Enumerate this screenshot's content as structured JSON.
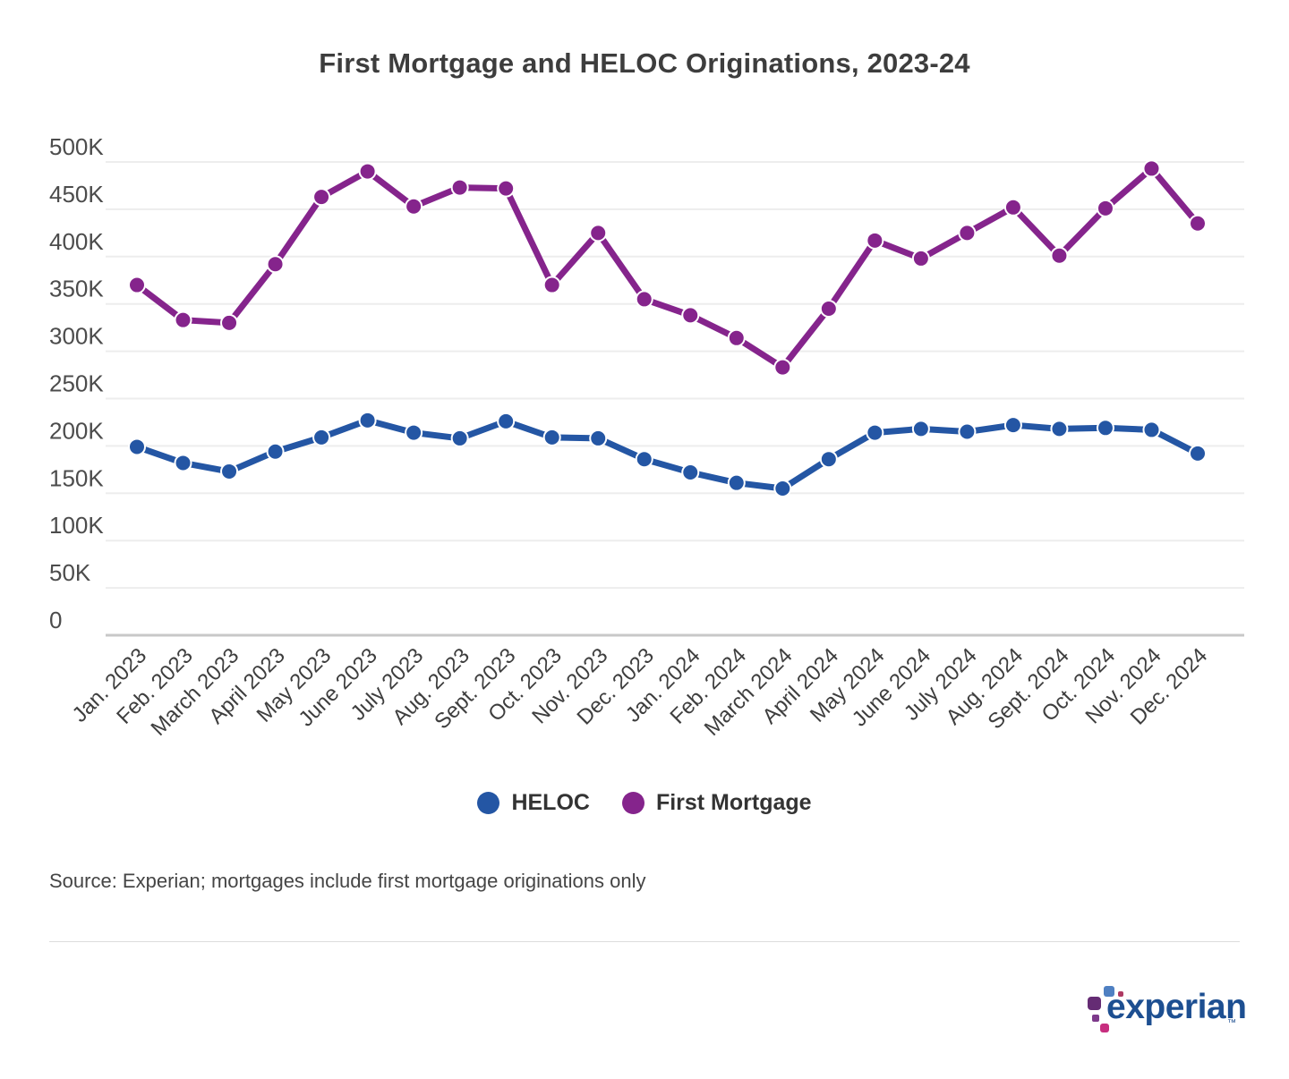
{
  "title": "First Mortgage and HELOC Originations, 2023-24",
  "source_note": "Source: Experian; mortgages include first mortgage originations only",
  "legend": [
    {
      "label": "HELOC",
      "color": "#2456a4"
    },
    {
      "label": "First Mortgage",
      "color": "#85248c"
    }
  ],
  "logo": {
    "wordmark": "experian",
    "tm": "™"
  },
  "chart_data": {
    "type": "line",
    "title": "First Mortgage and HELOC Originations, 2023-24",
    "xlabel": "",
    "ylabel": "",
    "unit": "thousands (K) of originations",
    "ylim": [
      0,
      500
    ],
    "y_ticks": [
      "0",
      "50K",
      "100K",
      "150K",
      "200K",
      "250K",
      "300K",
      "350K",
      "400K",
      "450K",
      "500K"
    ],
    "grid": true,
    "legend_position": "bottom",
    "categories": [
      "Jan. 2023",
      "Feb. 2023",
      "March 2023",
      "April 2023",
      "May 2023",
      "June 2023",
      "July 2023",
      "Aug. 2023",
      "Sept. 2023",
      "Oct. 2023",
      "Nov. 2023",
      "Dec. 2023",
      "Jan. 2024",
      "Feb. 2024",
      "March 2024",
      "April 2024",
      "May 2024",
      "June 2024",
      "July 2024",
      "Aug. 2024",
      "Sept. 2024",
      "Oct. 2024",
      "Nov. 2024",
      "Dec. 2024"
    ],
    "series": [
      {
        "name": "HELOC",
        "color": "#2456a4",
        "values": [
          199,
          182,
          173,
          194,
          209,
          227,
          214,
          208,
          226,
          209,
          208,
          186,
          172,
          161,
          155,
          186,
          214,
          218,
          215,
          222,
          218,
          219,
          217,
          192
        ]
      },
      {
        "name": "First Mortgage",
        "color": "#85248c",
        "values": [
          370,
          333,
          330,
          392,
          463,
          490,
          453,
          473,
          472,
          370,
          425,
          355,
          338,
          314,
          283,
          345,
          417,
          398,
          425,
          452,
          401,
          451,
          493,
          435
        ]
      }
    ]
  }
}
